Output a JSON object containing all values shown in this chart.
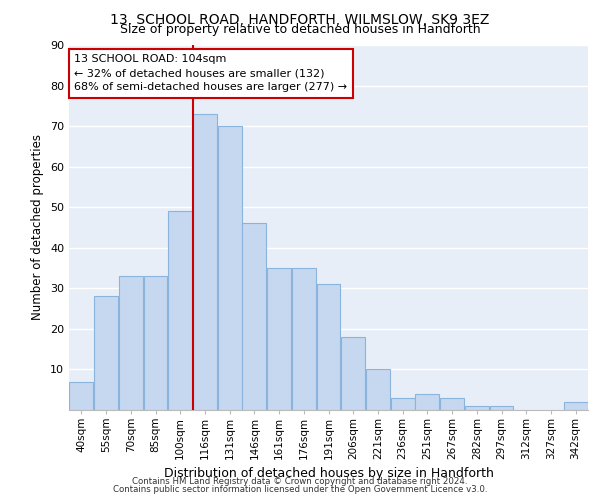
{
  "title1": "13, SCHOOL ROAD, HANDFORTH, WILMSLOW, SK9 3EZ",
  "title2": "Size of property relative to detached houses in Handforth",
  "xlabel": "Distribution of detached houses by size in Handforth",
  "ylabel": "Number of detached properties",
  "bar_labels": [
    "40sqm",
    "55sqm",
    "70sqm",
    "85sqm",
    "100sqm",
    "116sqm",
    "131sqm",
    "146sqm",
    "161sqm",
    "176sqm",
    "191sqm",
    "206sqm",
    "221sqm",
    "236sqm",
    "251sqm",
    "267sqm",
    "282sqm",
    "297sqm",
    "312sqm",
    "327sqm",
    "342sqm"
  ],
  "bar_values": [
    7,
    28,
    33,
    33,
    49,
    73,
    70,
    46,
    35,
    35,
    31,
    18,
    10,
    3,
    4,
    3,
    1,
    1,
    0,
    0,
    2
  ],
  "bar_color": "#C5D8F0",
  "bar_edge_color": "#8AB4DC",
  "vline_color": "#cc0000",
  "vline_x": 4.5,
  "annotation_line1": "13 SCHOOL ROAD: 104sqm",
  "annotation_line2": "← 32% of detached houses are smaller (132)",
  "annotation_line3": "68% of semi-detached houses are larger (277) →",
  "annotation_box_color": "#cc0000",
  "background_color": "#E8EEF8",
  "grid_color": "#FFFFFF",
  "footer1": "Contains HM Land Registry data © Crown copyright and database right 2024.",
  "footer2": "Contains public sector information licensed under the Open Government Licence v3.0.",
  "ylim": [
    0,
    90
  ],
  "yticks": [
    0,
    10,
    20,
    30,
    40,
    50,
    60,
    70,
    80,
    90
  ]
}
